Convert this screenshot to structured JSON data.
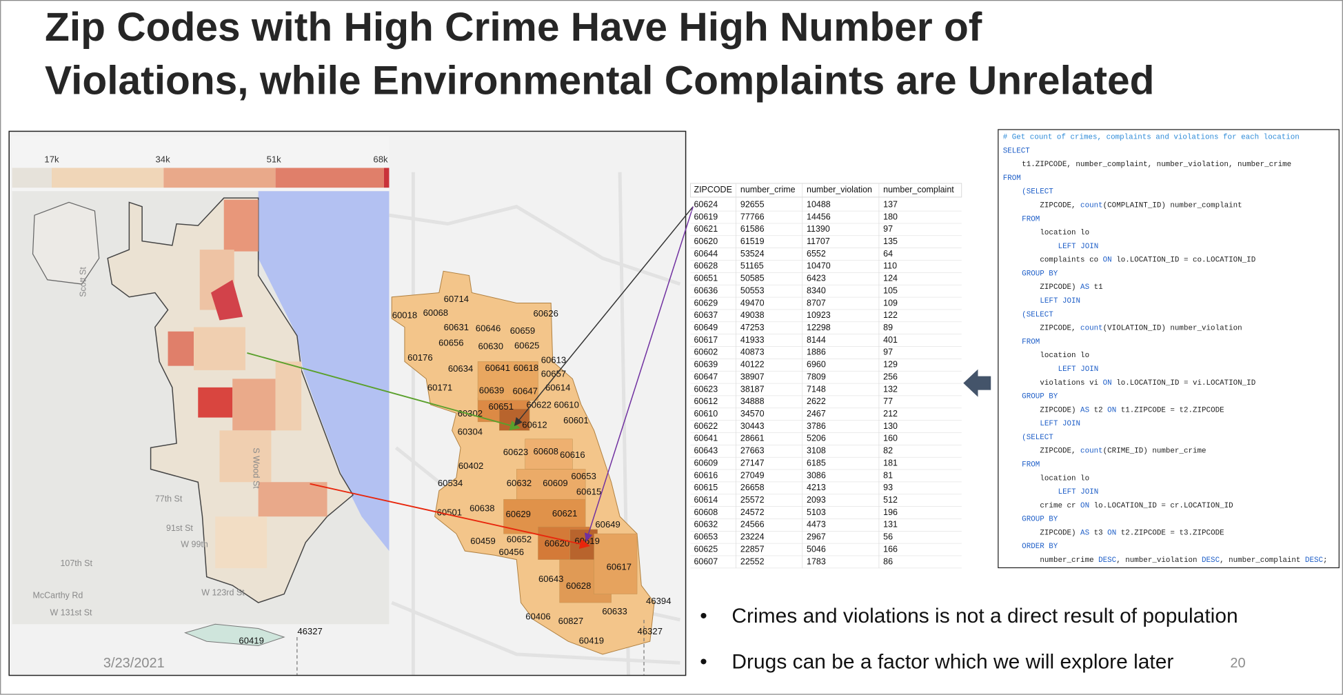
{
  "title_lines": [
    "Zip Codes with High Crime Have High Number of",
    "Violations, while Environmental Complaints are Unrelated"
  ],
  "map": {
    "legend_ticks": [
      "17k",
      "34k",
      "51k",
      "68k"
    ],
    "street_labels": [
      "Scott St",
      "S Wood St",
      "77th St",
      "91st St",
      "W 99th",
      "107th St",
      "W 123rd St",
      "McCarthy Rd",
      "W 131st St"
    ],
    "left_zip_labels": [
      "60419",
      "46327"
    ],
    "zip_labels": [
      "60714",
      "60018",
      "60068",
      "60626",
      "60631",
      "60646",
      "60659",
      "60656",
      "60630",
      "60625",
      "60176",
      "60613",
      "60634",
      "60641",
      "60618",
      "60657",
      "60171",
      "60639",
      "60647",
      "60614",
      "60651",
      "60622",
      "60610",
      "60302",
      "60601",
      "60612",
      "60304",
      "60623",
      "60608",
      "60616",
      "60402",
      "60653",
      "60534",
      "60632",
      "60609",
      "60615",
      "60501",
      "60638",
      "60629",
      "60621",
      "60649",
      "60459",
      "60652",
      "60620",
      "60619",
      "60456",
      "60617",
      "60643",
      "60628",
      "46394",
      "60633",
      "60406",
      "60827",
      "46327",
      "60419"
    ]
  },
  "table": {
    "columns": [
      "ZIPCODE",
      "number_crime",
      "number_violation",
      "number_complaint"
    ],
    "rows": [
      [
        60624,
        92655,
        10488,
        137
      ],
      [
        60619,
        77766,
        14456,
        180
      ],
      [
        60621,
        61586,
        11390,
        97
      ],
      [
        60620,
        61519,
        11707,
        135
      ],
      [
        60644,
        53524,
        6552,
        64
      ],
      [
        60628,
        51165,
        10470,
        110
      ],
      [
        60651,
        50585,
        6423,
        124
      ],
      [
        60636,
        50553,
        8340,
        105
      ],
      [
        60629,
        49470,
        8707,
        109
      ],
      [
        60637,
        49038,
        10923,
        122
      ],
      [
        60649,
        47253,
        12298,
        89
      ],
      [
        60617,
        41933,
        8144,
        401
      ],
      [
        60602,
        40873,
        1886,
        97
      ],
      [
        60639,
        40122,
        6960,
        129
      ],
      [
        60647,
        38907,
        7809,
        256
      ],
      [
        60623,
        38187,
        7148,
        132
      ],
      [
        60612,
        34888,
        2622,
        77
      ],
      [
        60610,
        34570,
        2467,
        212
      ],
      [
        60622,
        30443,
        3786,
        130
      ],
      [
        60641,
        28661,
        5206,
        160
      ],
      [
        60643,
        27663,
        3108,
        82
      ],
      [
        60609,
        27147,
        6185,
        181
      ],
      [
        60616,
        27049,
        3086,
        81
      ],
      [
        60615,
        26658,
        4213,
        93
      ],
      [
        60614,
        25572,
        2093,
        512
      ],
      [
        60608,
        24572,
        5103,
        196
      ],
      [
        60632,
        24566,
        4473,
        131
      ],
      [
        60653,
        23224,
        2967,
        56
      ],
      [
        60625,
        22857,
        5046,
        166
      ],
      [
        60607,
        22552,
        1783,
        86
      ]
    ]
  },
  "code": {
    "lines": [
      [
        "# Get count of crimes, complaints and violations for each location"
      ],
      [
        "SELECT"
      ],
      [
        "t1.ZIPCODE, number_complaint, number_violation, number_crime"
      ],
      [
        "FROM"
      ],
      [
        "(SELECT"
      ],
      [
        "ZIPCODE, ",
        "count",
        "(COMPLAINT_ID) number_complaint"
      ],
      [
        "FROM"
      ],
      [
        "location lo"
      ],
      [
        "LEFT JOIN"
      ],
      [
        "complaints co ",
        "ON",
        " lo.LOCATION_ID = co.LOCATION_ID"
      ],
      [
        "GROUP BY"
      ],
      [
        "ZIPCODE) ",
        "AS",
        " t1"
      ],
      [
        "LEFT JOIN"
      ],
      [
        "(SELECT"
      ],
      [
        "ZIPCODE, ",
        "count",
        "(VIOLATION_ID) number_violation"
      ],
      [
        "FROM"
      ],
      [
        "location lo"
      ],
      [
        "LEFT JOIN"
      ],
      [
        "violations vi ",
        "ON",
        " lo.LOCATION_ID = vi.LOCATION_ID"
      ],
      [
        "GROUP BY"
      ],
      [
        "ZIPCODE) ",
        "AS",
        " t2 ",
        "ON",
        " t1.ZIPCODE = t2.ZIPCODE"
      ],
      [
        "LEFT JOIN"
      ],
      [
        "(SELECT"
      ],
      [
        "ZIPCODE, ",
        "count",
        "(CRIME_ID) number_crime"
      ],
      [
        "FROM"
      ],
      [
        "location lo"
      ],
      [
        "LEFT JOIN"
      ],
      [
        "crime cr ",
        "ON",
        " lo.LOCATION_ID = cr.LOCATION_ID"
      ],
      [
        "GROUP BY"
      ],
      [
        "ZIPCODE) ",
        "AS",
        " t3 ",
        "ON",
        " t2.ZIPCODE = t3.ZIPCODE"
      ],
      [
        "ORDER BY"
      ],
      [
        "number_crime ",
        "DESC",
        ", number_violation ",
        "DESC",
        ", number_complaint ",
        "DESC",
        ";"
      ]
    ]
  },
  "bullets": [
    "Crimes and violations is not a direct result of population",
    "Drugs can be a factor which we will explore later"
  ],
  "footer": {
    "date": "3/23/2021",
    "page": "20"
  }
}
